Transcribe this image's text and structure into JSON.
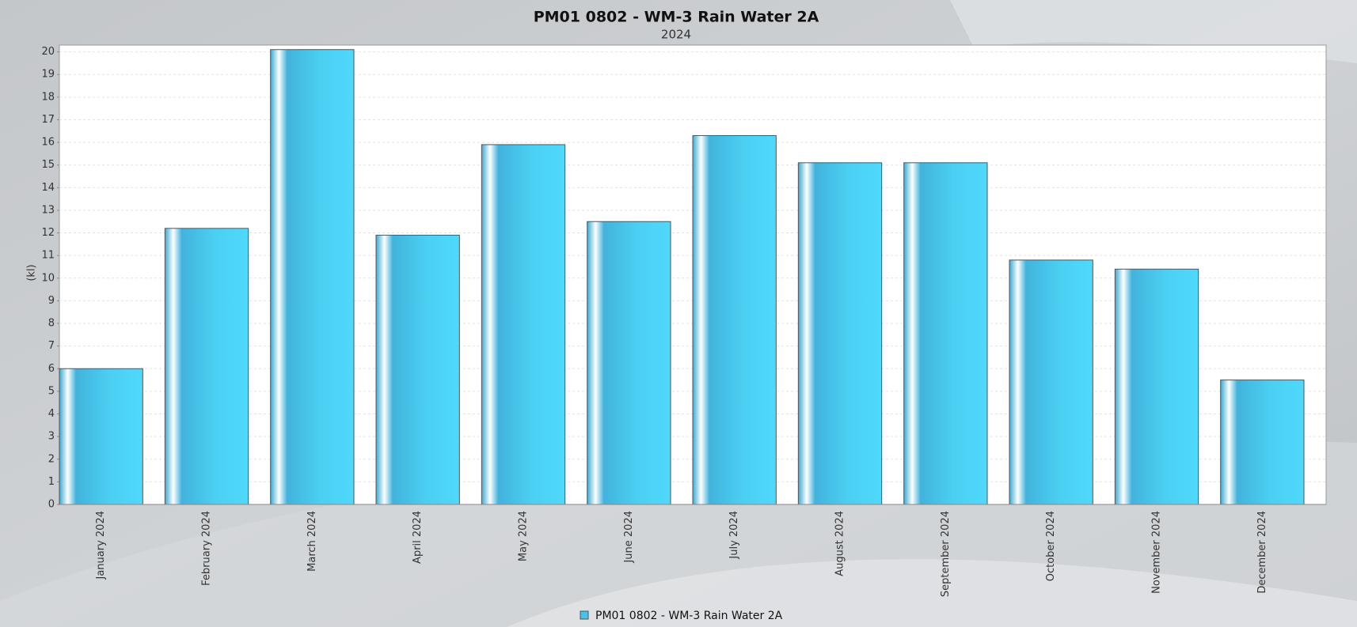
{
  "chart_data": {
    "type": "bar",
    "title": "PM01 0802 - WM-3 Rain Water 2A",
    "subtitle": "2024",
    "y_label": "(kl)",
    "categories": [
      "January 2024",
      "February 2024",
      "March 2024",
      "April 2024",
      "May 2024",
      "June 2024",
      "July 2024",
      "August 2024",
      "September 2024",
      "October 2024",
      "November 2024",
      "December 2024"
    ],
    "series": [
      {
        "name": "PM01 0802 - WM-3 Rain Water 2A",
        "color": "#45c3eb",
        "values": [
          6.0,
          12.2,
          20.1,
          11.9,
          15.9,
          12.5,
          16.3,
          15.1,
          15.1,
          10.8,
          10.4,
          5.5
        ]
      }
    ],
    "ylim": [
      0,
      20.3
    ],
    "yticks": [
      0,
      1,
      2,
      3,
      4,
      5,
      6,
      7,
      8,
      9,
      10,
      11,
      12,
      13,
      14,
      15,
      16,
      17,
      18,
      19,
      20
    ],
    "grid": true,
    "legend": "bottom"
  }
}
